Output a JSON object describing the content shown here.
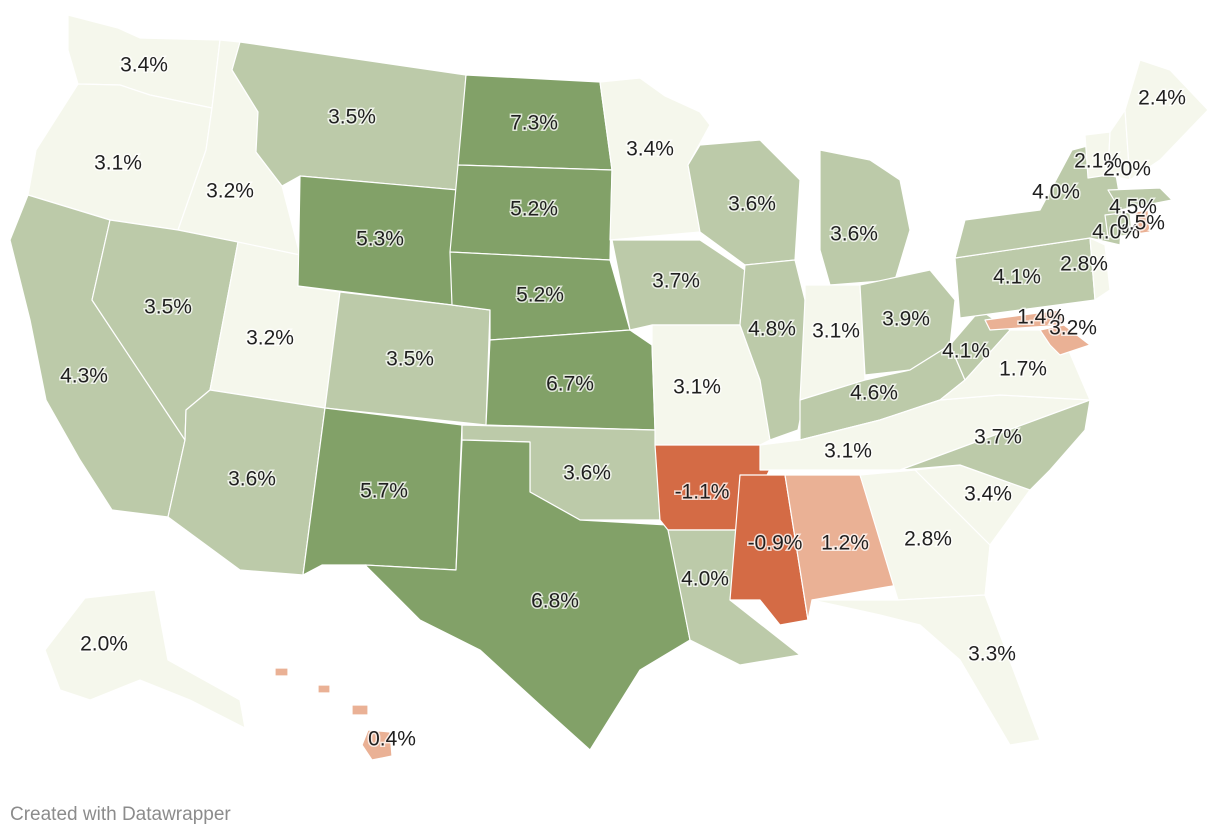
{
  "map": {
    "colors": {
      "neg_high": "#d46b45",
      "neg_low": "#eab195",
      "low": "#f5f7ec",
      "mid": "#bccaa9",
      "high": "#82a168",
      "border": "#ffffff"
    },
    "states": [
      {
        "id": "WA",
        "value": "3.4%",
        "tier": "low"
      },
      {
        "id": "OR",
        "value": "3.1%",
        "tier": "low"
      },
      {
        "id": "CA",
        "value": "4.3%",
        "tier": "mid"
      },
      {
        "id": "ID",
        "value": "3.2%",
        "tier": "low"
      },
      {
        "id": "NV",
        "value": "3.5%",
        "tier": "mid"
      },
      {
        "id": "UT",
        "value": "3.2%",
        "tier": "low"
      },
      {
        "id": "AZ",
        "value": "3.6%",
        "tier": "mid"
      },
      {
        "id": "MT",
        "value": "3.5%",
        "tier": "mid"
      },
      {
        "id": "WY",
        "value": "5.3%",
        "tier": "high"
      },
      {
        "id": "CO",
        "value": "3.5%",
        "tier": "mid"
      },
      {
        "id": "NM",
        "value": "5.7%",
        "tier": "high"
      },
      {
        "id": "ND",
        "value": "7.3%",
        "tier": "high"
      },
      {
        "id": "SD",
        "value": "5.2%",
        "tier": "high"
      },
      {
        "id": "NE",
        "value": "5.2%",
        "tier": "high"
      },
      {
        "id": "KS",
        "value": "6.7%",
        "tier": "high"
      },
      {
        "id": "OK",
        "value": "3.6%",
        "tier": "mid"
      },
      {
        "id": "TX",
        "value": "6.8%",
        "tier": "high"
      },
      {
        "id": "MN",
        "value": "3.4%",
        "tier": "low"
      },
      {
        "id": "IA",
        "value": "3.7%",
        "tier": "mid"
      },
      {
        "id": "MO",
        "value": "3.1%",
        "tier": "low"
      },
      {
        "id": "AR",
        "value": "-1.1%",
        "tier": "neg_high"
      },
      {
        "id": "LA",
        "value": "4.0%",
        "tier": "mid"
      },
      {
        "id": "WI",
        "value": "3.6%",
        "tier": "mid"
      },
      {
        "id": "IL",
        "value": "4.8%",
        "tier": "mid"
      },
      {
        "id": "MI",
        "value": "3.6%",
        "tier": "mid"
      },
      {
        "id": "IN",
        "value": "3.1%",
        "tier": "low"
      },
      {
        "id": "OH",
        "value": "3.9%",
        "tier": "mid"
      },
      {
        "id": "KY",
        "value": "4.6%",
        "tier": "mid"
      },
      {
        "id": "TN",
        "value": "3.1%",
        "tier": "low"
      },
      {
        "id": "MS",
        "value": "-0.9%",
        "tier": "neg_high"
      },
      {
        "id": "AL",
        "value": "1.2%",
        "tier": "neg_low"
      },
      {
        "id": "GA",
        "value": "2.8%",
        "tier": "low"
      },
      {
        "id": "FL",
        "value": "3.3%",
        "tier": "low"
      },
      {
        "id": "SC",
        "value": "3.4%",
        "tier": "low"
      },
      {
        "id": "NC",
        "value": "3.7%",
        "tier": "mid"
      },
      {
        "id": "VA",
        "value": "1.7%",
        "tier": "low"
      },
      {
        "id": "WV",
        "value": "4.1%",
        "tier": "mid"
      },
      {
        "id": "PA",
        "value": "4.1%",
        "tier": "mid"
      },
      {
        "id": "NY",
        "value": "4.0%",
        "tier": "mid"
      },
      {
        "id": "NJ",
        "value": "2.8%",
        "tier": "low"
      },
      {
        "id": "DE",
        "value": "1.4%",
        "tier": "neg_low"
      },
      {
        "id": "MD",
        "value": "3.2%",
        "tier": "neg_low"
      },
      {
        "id": "VT",
        "value": "2.1%",
        "tier": "low"
      },
      {
        "id": "NH",
        "value": "2.0%",
        "tier": "low"
      },
      {
        "id": "ME",
        "value": "2.4%",
        "tier": "low"
      },
      {
        "id": "MA",
        "value": "4.5%",
        "tier": "mid"
      },
      {
        "id": "CT",
        "value": "4.0%",
        "tier": "mid"
      },
      {
        "id": "RI",
        "value": "0.5%",
        "tier": "neg_low"
      },
      {
        "id": "AK",
        "value": "2.0%",
        "tier": "low"
      },
      {
        "id": "HI",
        "value": "0.4%",
        "tier": "neg_low"
      }
    ]
  },
  "footer": {
    "credit": "Created with Datawrapper"
  }
}
